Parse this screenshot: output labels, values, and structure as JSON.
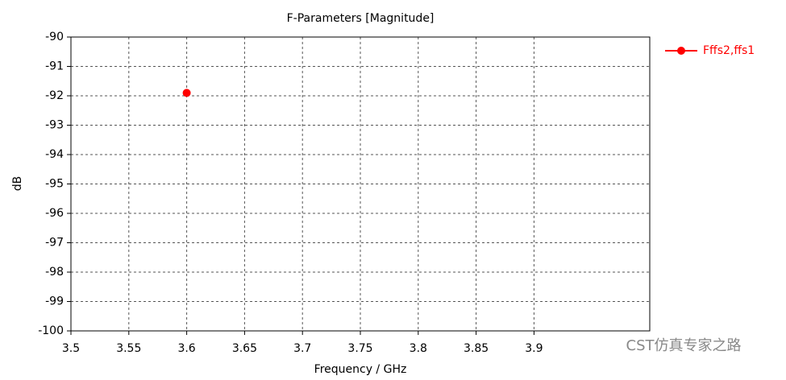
{
  "chart_data": {
    "type": "scatter",
    "title": "F-Parameters [Magnitude]",
    "x_label": "Frequency / GHz",
    "y_label": "dB",
    "series": [
      {
        "name": "Fffs2,ffs1",
        "color": "#ff0000",
        "x": [
          3.6
        ],
        "values": [
          -91.9
        ]
      }
    ],
    "xlim": [
      3.5,
      4.0
    ],
    "xticks": [
      3.5,
      3.55,
      3.6,
      3.65,
      3.7,
      3.75,
      3.8,
      3.85,
      3.9
    ],
    "ylim": [
      -100,
      -90
    ],
    "yticks": [
      -90,
      -91,
      -92,
      -93,
      -94,
      -95,
      -96,
      -97,
      -98,
      -99,
      -100
    ],
    "grid": true,
    "legend": "right",
    "watermark": "CST仿真专家之路"
  }
}
